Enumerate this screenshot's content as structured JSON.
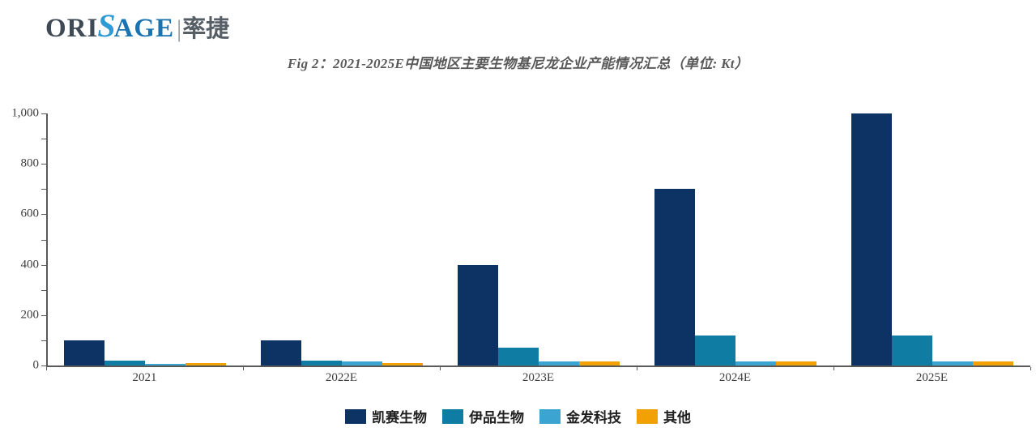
{
  "logo": {
    "ori": "ORI",
    "s": "S",
    "age": "AGE",
    "divider": "|",
    "cn": "率捷"
  },
  "title": "Fig 2：2021-2025E中国地区主要生物基尼龙企业产能情况汇总（单位: Kt）",
  "chart_data": {
    "type": "bar",
    "title": "Fig 2：2021-2025E中国地区主要生物基尼龙企业产能情况汇总（单位: Kt）",
    "unit": "Kt",
    "categories": [
      "2021",
      "2022E",
      "2023E",
      "2024E",
      "2025E"
    ],
    "series": [
      {
        "name": "凯赛生物",
        "color": "#0d3264",
        "values": [
          100,
          100,
          400,
          700,
          1000
        ]
      },
      {
        "name": "伊品生物",
        "color": "#0e7ca3",
        "values": [
          20,
          20,
          70,
          120,
          120
        ]
      },
      {
        "name": "金发科技",
        "color": "#3ba4d1",
        "values": [
          5,
          15,
          15,
          15,
          15
        ]
      },
      {
        "name": "其他",
        "color": "#f2a104",
        "values": [
          10,
          10,
          15,
          15,
          15
        ]
      }
    ],
    "xlabel": "",
    "ylabel": "",
    "ylim": [
      0,
      1000
    ],
    "y_major_tick": 200,
    "y_minor_tick": 100,
    "y_tick_labels": [
      "0",
      "200",
      "400",
      "600",
      "800",
      "1,000"
    ],
    "grid": false,
    "legend_position": "bottom",
    "axis_color": "#595959"
  }
}
